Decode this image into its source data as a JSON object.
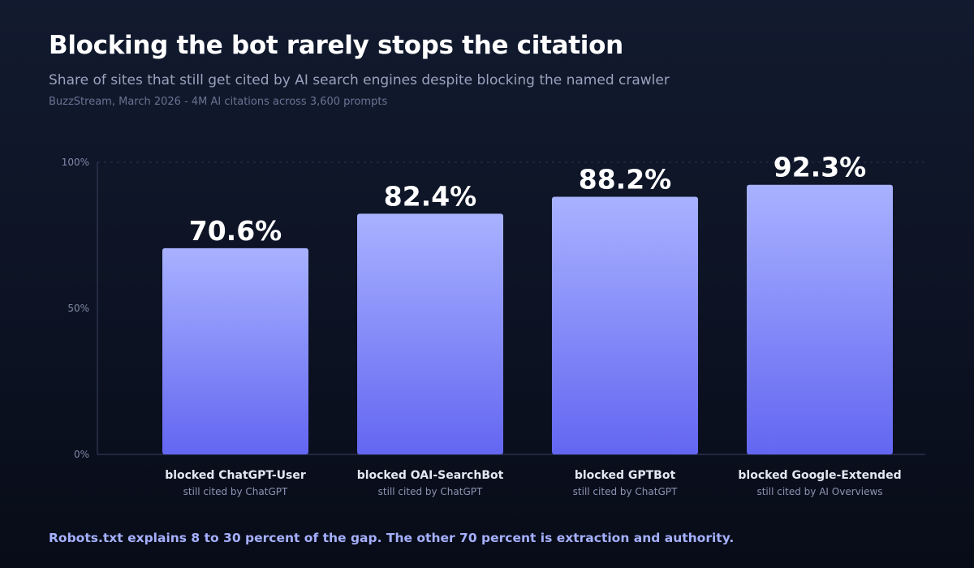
{
  "header": {
    "title": "Blocking the bot rarely stops the citation",
    "subtitle": "Share of sites that still get cited by AI search engines despite blocking the named crawler",
    "source": "BuzzStream, March 2026 - 4M AI citations across 3,600 prompts"
  },
  "footer": {
    "note": "Robots.txt explains 8 to 30 percent of the gap. The other 70 percent is extraction and authority."
  },
  "chart_data": {
    "type": "bar",
    "categories": [
      "blocked ChatGPT-User",
      "blocked OAI-SearchBot",
      "blocked GPTBot",
      "blocked Google-Extended"
    ],
    "sublabels": [
      "still cited by ChatGPT",
      "still cited by ChatGPT",
      "still cited by ChatGPT",
      "still cited by AI Overviews"
    ],
    "values": [
      70.6,
      82.4,
      88.2,
      92.3
    ],
    "value_labels": [
      "70.6%",
      "82.4%",
      "88.2%",
      "92.3%"
    ],
    "yticks": [
      0,
      50,
      100
    ],
    "ytick_labels": [
      "0%",
      "50%",
      "100%"
    ],
    "ylim": [
      0,
      100
    ],
    "grid": "top line dashed only",
    "colors": {
      "bar_top": "#a8b2ff",
      "bar_bottom": "#6366f1",
      "axis": "#3a4260"
    }
  }
}
